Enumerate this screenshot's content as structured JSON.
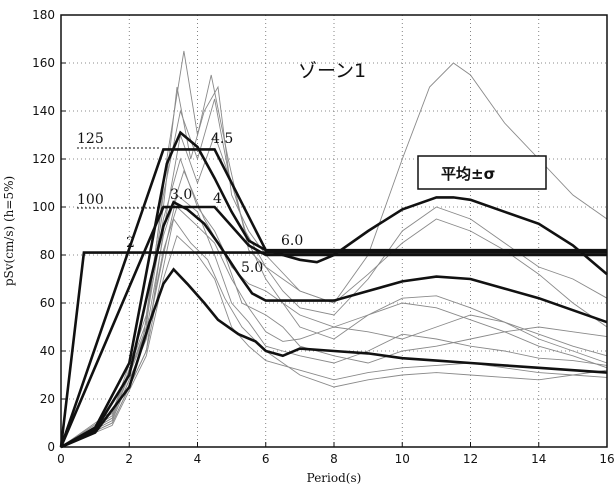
{
  "chart_data": {
    "type": "line",
    "title": "ゾーン1",
    "xlabel": "Period(s)",
    "ylabel": "pSv(cm/s) (h=5%)",
    "xlim": [
      0,
      16
    ],
    "ylim": [
      0,
      180
    ],
    "xticks": [
      0,
      2,
      4,
      6,
      8,
      10,
      12,
      14,
      16
    ],
    "yticks": [
      0,
      20,
      40,
      60,
      80,
      100,
      120,
      140,
      160,
      180
    ],
    "grid": "dotted",
    "legend": {
      "label": "平均±σ",
      "position": "upper-right"
    },
    "design_spectra": [
      {
        "name": "2",
        "points": [
          [
            0,
            0
          ],
          [
            0.67,
            81
          ],
          [
            16,
            81
          ]
        ]
      },
      {
        "name": "100",
        "points": [
          [
            0,
            0
          ],
          [
            3.0,
            100
          ],
          [
            4.5,
            100
          ],
          [
            5.5,
            84
          ],
          [
            6.0,
            80
          ],
          [
            16,
            80
          ]
        ]
      },
      {
        "name": "125",
        "points": [
          [
            0,
            0
          ],
          [
            3.0,
            124
          ],
          [
            4.5,
            124
          ],
          [
            6.0,
            82
          ],
          [
            16,
            82
          ]
        ]
      }
    ],
    "annotations": [
      "125",
      "100",
      "2",
      "3.0",
      "4.5",
      "4",
      "5.0",
      "6.0"
    ],
    "mean_curves": [
      {
        "name": "mean+σ",
        "points": [
          [
            0,
            0
          ],
          [
            1,
            8
          ],
          [
            2,
            35
          ],
          [
            2.6,
            80
          ],
          [
            3.1,
            118
          ],
          [
            3.5,
            131
          ],
          [
            4.0,
            125
          ],
          [
            4.5,
            112
          ],
          [
            5,
            98
          ],
          [
            5.5,
            86
          ],
          [
            6,
            82
          ],
          [
            6.5,
            80
          ],
          [
            7,
            78
          ],
          [
            7.5,
            77
          ],
          [
            8,
            80
          ],
          [
            9,
            90
          ],
          [
            10,
            99
          ],
          [
            11,
            104
          ],
          [
            11.5,
            104
          ],
          [
            12,
            103
          ],
          [
            13,
            98
          ],
          [
            14,
            93
          ],
          [
            15,
            84
          ],
          [
            16,
            72
          ]
        ]
      },
      {
        "name": "mean",
        "points": [
          [
            0,
            0
          ],
          [
            1,
            7
          ],
          [
            2,
            30
          ],
          [
            2.6,
            68
          ],
          [
            3.0,
            92
          ],
          [
            3.3,
            102
          ],
          [
            3.7,
            99
          ],
          [
            4.2,
            93
          ],
          [
            4.6,
            85
          ],
          [
            5.2,
            72
          ],
          [
            5.6,
            64
          ],
          [
            6,
            61
          ],
          [
            6.5,
            61
          ],
          [
            7,
            61
          ],
          [
            8,
            61
          ],
          [
            9,
            65
          ],
          [
            10,
            69
          ],
          [
            11,
            71
          ],
          [
            12,
            70
          ],
          [
            13,
            66
          ],
          [
            14,
            62
          ],
          [
            15,
            57
          ],
          [
            16,
            52
          ]
        ]
      },
      {
        "name": "mean-σ",
        "points": [
          [
            0,
            0
          ],
          [
            1,
            6
          ],
          [
            2,
            25
          ],
          [
            2.6,
            52
          ],
          [
            3.0,
            68
          ],
          [
            3.3,
            74
          ],
          [
            3.7,
            68
          ],
          [
            4.2,
            60
          ],
          [
            4.6,
            53
          ],
          [
            5.2,
            47
          ],
          [
            5.7,
            44
          ],
          [
            6,
            40
          ],
          [
            6.5,
            38
          ],
          [
            7,
            41
          ],
          [
            8,
            40
          ],
          [
            9,
            39
          ],
          [
            10,
            37
          ],
          [
            11,
            36
          ],
          [
            12,
            35
          ],
          [
            13,
            34
          ],
          [
            14,
            33
          ],
          [
            15,
            32
          ],
          [
            16,
            31
          ]
        ]
      }
    ],
    "individual_records": [
      {
        "points": [
          [
            0,
            0
          ],
          [
            1.5,
            15
          ],
          [
            2.4,
            45
          ],
          [
            3.0,
            100
          ],
          [
            3.4,
            150
          ],
          [
            3.8,
            120
          ],
          [
            4.2,
            140
          ],
          [
            4.6,
            150
          ],
          [
            5,
            105
          ],
          [
            5.5,
            90
          ],
          [
            6,
            80
          ],
          [
            7,
            65
          ],
          [
            8,
            60
          ],
          [
            9,
            80
          ],
          [
            10,
            120
          ],
          [
            10.8,
            150
          ],
          [
            11.5,
            160
          ],
          [
            12,
            155
          ],
          [
            13,
            135
          ],
          [
            14,
            120
          ],
          [
            15,
            105
          ],
          [
            16,
            95
          ]
        ]
      },
      {
        "points": [
          [
            0,
            0
          ],
          [
            1.5,
            12
          ],
          [
            2.5,
            50
          ],
          [
            3.1,
            120
          ],
          [
            3.6,
            165
          ],
          [
            4.0,
            130
          ],
          [
            4.4,
            155
          ],
          [
            4.9,
            120
          ],
          [
            5.5,
            82
          ],
          [
            6,
            75
          ],
          [
            6.5,
            65
          ],
          [
            7,
            58
          ],
          [
            8,
            55
          ],
          [
            9,
            70
          ],
          [
            10,
            90
          ],
          [
            11,
            100
          ],
          [
            12,
            95
          ],
          [
            13,
            85
          ],
          [
            14,
            75
          ],
          [
            15,
            70
          ],
          [
            16,
            62
          ]
        ]
      },
      {
        "points": [
          [
            0,
            0
          ],
          [
            1.5,
            10
          ],
          [
            2.5,
            40
          ],
          [
            3.0,
            90
          ],
          [
            3.5,
            130
          ],
          [
            4.0,
            110
          ],
          [
            4.5,
            130
          ],
          [
            5,
            110
          ],
          [
            5.5,
            85
          ],
          [
            6,
            70
          ],
          [
            6.5,
            60
          ],
          [
            7,
            50
          ],
          [
            8,
            45
          ],
          [
            9,
            55
          ],
          [
            10,
            62
          ],
          [
            11,
            63
          ],
          [
            12,
            58
          ],
          [
            13,
            52
          ],
          [
            14,
            45
          ],
          [
            15,
            40
          ],
          [
            16,
            35
          ]
        ]
      },
      {
        "points": [
          [
            0,
            0
          ],
          [
            1.5,
            11
          ],
          [
            2.5,
            45
          ],
          [
            3.0,
            80
          ],
          [
            3.4,
            105
          ],
          [
            4,
            98
          ],
          [
            4.5,
            80
          ],
          [
            5,
            60
          ],
          [
            5.5,
            52
          ],
          [
            6,
            42
          ],
          [
            6.5,
            40
          ],
          [
            7,
            38
          ],
          [
            8,
            35
          ],
          [
            9,
            40
          ],
          [
            10,
            47
          ],
          [
            11,
            45
          ],
          [
            12,
            42
          ],
          [
            13,
            40
          ],
          [
            14,
            37
          ],
          [
            15,
            36
          ],
          [
            16,
            34
          ]
        ]
      },
      {
        "points": [
          [
            0,
            0
          ],
          [
            1.5,
            9
          ],
          [
            2.5,
            38
          ],
          [
            3.0,
            70
          ],
          [
            3.4,
            88
          ],
          [
            4,
            80
          ],
          [
            4.5,
            70
          ],
          [
            5,
            50
          ],
          [
            5.5,
            42
          ],
          [
            6,
            36
          ],
          [
            6.5,
            34
          ],
          [
            7,
            32
          ],
          [
            8,
            28
          ],
          [
            9,
            31
          ],
          [
            10,
            33
          ],
          [
            11,
            34
          ],
          [
            12,
            35
          ],
          [
            13,
            33
          ],
          [
            14,
            31
          ],
          [
            15,
            30
          ],
          [
            16,
            29
          ]
        ]
      },
      {
        "points": [
          [
            0,
            0
          ],
          [
            1.5,
            13
          ],
          [
            2.5,
            52
          ],
          [
            3.0,
            95
          ],
          [
            3.5,
            120
          ],
          [
            4,
            100
          ],
          [
            4.5,
            90
          ],
          [
            5,
            75
          ],
          [
            5.5,
            68
          ],
          [
            6,
            65
          ],
          [
            6.5,
            60
          ],
          [
            7,
            55
          ],
          [
            8,
            50
          ],
          [
            9,
            48
          ],
          [
            10,
            45
          ],
          [
            11,
            50
          ],
          [
            12,
            55
          ],
          [
            13,
            52
          ],
          [
            14,
            47
          ],
          [
            15,
            42
          ],
          [
            16,
            38
          ]
        ]
      },
      {
        "points": [
          [
            0,
            0
          ],
          [
            1.5,
            12
          ],
          [
            2.5,
            48
          ],
          [
            3.0,
            88
          ],
          [
            3.6,
            115
          ],
          [
            4.2,
            95
          ],
          [
            4.8,
            80
          ],
          [
            5.3,
            60
          ],
          [
            6,
            55
          ],
          [
            6.5,
            50
          ],
          [
            7,
            42
          ],
          [
            8,
            38
          ],
          [
            9,
            35
          ],
          [
            10,
            40
          ],
          [
            11,
            42
          ],
          [
            12,
            45
          ],
          [
            13,
            48
          ],
          [
            14,
            50
          ],
          [
            15,
            48
          ],
          [
            16,
            46
          ]
        ]
      },
      {
        "points": [
          [
            0,
            0
          ],
          [
            1.5,
            10
          ],
          [
            2.5,
            40
          ],
          [
            3.0,
            75
          ],
          [
            3.3,
            95
          ],
          [
            3.8,
            85
          ],
          [
            4.3,
            78
          ],
          [
            4.8,
            62
          ],
          [
            5.3,
            50
          ],
          [
            6,
            40
          ],
          [
            6.5,
            35
          ],
          [
            7,
            30
          ],
          [
            8,
            25
          ],
          [
            9,
            28
          ],
          [
            10,
            30
          ],
          [
            11,
            31
          ],
          [
            12,
            30
          ],
          [
            13,
            29
          ],
          [
            14,
            28
          ],
          [
            15,
            30
          ],
          [
            16,
            32
          ]
        ]
      },
      {
        "points": [
          [
            0,
            0
          ],
          [
            1.5,
            14
          ],
          [
            2.5,
            55
          ],
          [
            3.0,
            105
          ],
          [
            3.5,
            140
          ],
          [
            4,
            120
          ],
          [
            4.5,
            145
          ],
          [
            4.9,
            115
          ],
          [
            5.4,
            90
          ],
          [
            6,
            75
          ],
          [
            6.5,
            70
          ],
          [
            7,
            65
          ],
          [
            8,
            60
          ],
          [
            9,
            72
          ],
          [
            10,
            85
          ],
          [
            11,
            95
          ],
          [
            12,
            90
          ],
          [
            13,
            82
          ],
          [
            14,
            72
          ],
          [
            15,
            60
          ],
          [
            16,
            50
          ]
        ]
      },
      {
        "points": [
          [
            0,
            0
          ],
          [
            1.5,
            11
          ],
          [
            2.5,
            45
          ],
          [
            3.0,
            82
          ],
          [
            3.4,
            100
          ],
          [
            4,
            92
          ],
          [
            4.5,
            85
          ],
          [
            5,
            70
          ],
          [
            5.5,
            58
          ],
          [
            6,
            48
          ],
          [
            6.5,
            44
          ],
          [
            7,
            45
          ],
          [
            8,
            50
          ],
          [
            9,
            55
          ],
          [
            10,
            60
          ],
          [
            11,
            58
          ],
          [
            12,
            53
          ],
          [
            13,
            48
          ],
          [
            14,
            42
          ],
          [
            15,
            38
          ],
          [
            16,
            33
          ]
        ]
      }
    ]
  }
}
